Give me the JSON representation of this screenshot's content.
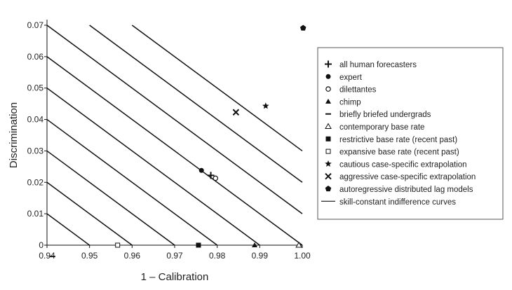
{
  "chart_data": {
    "type": "scatter",
    "xlabel": "1 – Calibration",
    "ylabel": "Discrimination",
    "xlim": [
      0.94,
      1.0
    ],
    "ylim": [
      0,
      0.07
    ],
    "x_ticks": [
      "0.94",
      "0.95",
      "0.96",
      "0.97",
      "0.98",
      "0.99",
      "1.00"
    ],
    "y_ticks": [
      "0",
      "0.01",
      "0.02",
      "0.03",
      "0.04",
      "0.05",
      "0.06",
      "0.07"
    ],
    "grid": false,
    "legend_position": "right",
    "series": [
      {
        "name": "all human forecasters",
        "marker": "plus",
        "points": [
          [
            0.9785,
            0.0222
          ]
        ]
      },
      {
        "name": "expert",
        "marker": "filled-circle",
        "points": [
          [
            0.9763,
            0.0238
          ]
        ]
      },
      {
        "name": "dilettantes",
        "marker": "open-circle",
        "points": [
          [
            0.9796,
            0.0213
          ]
        ]
      },
      {
        "name": "chimp",
        "marker": "filled-triangle",
        "points": [
          [
            0.9888,
            0.0
          ]
        ]
      },
      {
        "name": "briefly briefed undergrads",
        "marker": "dash",
        "points": [
          [
            0.9413,
            -0.0036
          ]
        ]
      },
      {
        "name": "contemporary base rate",
        "marker": "open-triangle",
        "points": [
          [
            0.9992,
            0.0
          ]
        ]
      },
      {
        "name": "restrictive base rate (recent past)",
        "marker": "filled-square",
        "points": [
          [
            0.9756,
            0.0
          ]
        ]
      },
      {
        "name": "expansive base rate (recent past)",
        "marker": "open-square",
        "points": [
          [
            0.9566,
            0.0
          ]
        ]
      },
      {
        "name": "cautious case-specific extrapolation",
        "marker": "star",
        "points": [
          [
            0.9914,
            0.0443
          ]
        ]
      },
      {
        "name": "aggressive case-specific extrapolation",
        "marker": "x",
        "points": [
          [
            0.9844,
            0.0423
          ]
        ]
      },
      {
        "name": "autoregressive distributed lag models",
        "marker": "filled-pentagon",
        "points": [
          [
            1.0002,
            0.0691
          ]
        ]
      },
      {
        "name": "skill-constant indifference curves",
        "marker": "line",
        "points": []
      }
    ],
    "indifference_curves": {
      "slope": -1.0,
      "x_intercepts": [
        0.95,
        0.96,
        0.97,
        0.98,
        0.99,
        1.0,
        1.01,
        1.02,
        1.03
      ]
    }
  }
}
